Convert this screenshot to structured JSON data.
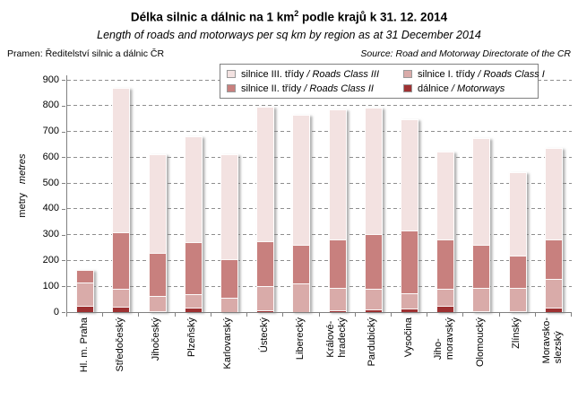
{
  "header": {
    "title_prefix": "Délka silnic a dálnic na 1 km",
    "title_sup": "2",
    "title_suffix": " podle krajů k 31. 12. 2014",
    "subtitle": "Length of roads and motorways per sq km by region as at 31 December 2014",
    "pramen": "Pramen: Ředitelství silnic a dálnic ČR",
    "source": "Source: Road and Motorway Directorate of the CR"
  },
  "colors": {
    "motorways": "#9E3132",
    "class1": "#D9ABA9",
    "class2": "#C8807E",
    "class3": "#F3E2E1",
    "gridline": "#8F8F8F",
    "axis": "#808080"
  },
  "legend": {
    "items": [
      {
        "label_cz": "silnice III. třídy",
        "label_en": "Roads Class III",
        "color_key": "class3"
      },
      {
        "label_cz": "silnice I. třídy",
        "label_en": "Roads Class I",
        "color_key": "class1"
      },
      {
        "label_cz": "silnice II. třídy",
        "label_en": "Roads Class II",
        "color_key": "class2"
      },
      {
        "label_cz": "dálnice",
        "label_en": "Motorways",
        "color_key": "motorways"
      }
    ]
  },
  "chart_data": {
    "type": "bar",
    "stacked": true,
    "title": "Délka silnic a dálnic na 1 km2 podle krajů k 31. 12. 2014",
    "subtitle": "Length of roads and motorways per sq km by region as at 31 December 2014",
    "ylabel_cz": "metry",
    "ylabel_en": "metres",
    "ylim": [
      0,
      900
    ],
    "y_ticks": [
      0,
      100,
      200,
      300,
      400,
      500,
      600,
      700,
      800,
      900
    ],
    "grid": "dashed horizontal",
    "legend_position": "top",
    "categories": [
      "Hl. m. Praha",
      "Středočeský",
      "Jihočeský",
      "Plzeňský",
      "Karlovarský",
      "Ústecký",
      "Liberecký",
      "Královéhradecký",
      "Pardubický",
      "Vysočina",
      "Jihomoravský",
      "Olomoucký",
      "Zlínský",
      "Moravskoslezský"
    ],
    "category_labels": [
      "Hl. m. Praha",
      "Středočeský",
      "Jihočeský",
      "Plzeňský",
      "Karlovarský",
      "Ústecký",
      "Liberecký",
      "Králové-\nhradecký",
      "Pardubický",
      "Vysočina",
      "Jiho-\nmoravský",
      "Olomoucký",
      "Zlínský",
      "Moravsko-\nslezský"
    ],
    "series": [
      {
        "name": "dálnice / Motorways",
        "color_key": "motorways",
        "values": [
          24,
          20,
          5,
          18,
          0,
          8,
          0,
          7,
          11,
          14,
          23,
          5,
          4,
          16
        ]
      },
      {
        "name": "silnice I. třídy / Roads Class I",
        "color_key": "class1",
        "values": [
          89,
          70,
          59,
          53,
          56,
          94,
          112,
          88,
          81,
          60,
          67,
          90,
          91,
          113
        ]
      },
      {
        "name": "silnice II. třídy / Roads Class II",
        "color_key": "class2",
        "values": [
          51,
          218,
          164,
          199,
          149,
          174,
          148,
          186,
          212,
          242,
          193,
          166,
          124,
          154
        ]
      },
      {
        "name": "silnice III. třídy / Roads Class III",
        "color_key": "class3",
        "values": [
          0,
          562,
          382,
          410,
          407,
          519,
          504,
          504,
          487,
          430,
          339,
          413,
          322,
          352
        ]
      }
    ],
    "totals": [
      164,
      870,
      610,
      680,
      612,
      795,
      764,
      785,
      791,
      746,
      622,
      674,
      541,
      635
    ]
  }
}
